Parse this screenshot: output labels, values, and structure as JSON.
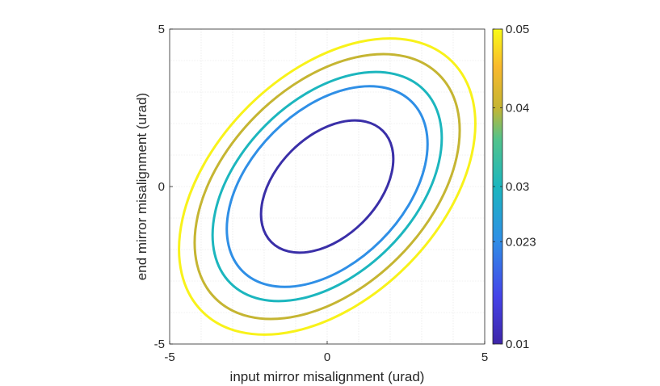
{
  "chart_data": {
    "type": "contour",
    "xlabel": "input mirror misalignment (urad)",
    "ylabel": "end mirror misalignment (urad)",
    "xlim": [
      -5,
      5
    ],
    "ylim": [
      -5,
      5
    ],
    "xticks": [
      "-5",
      "0",
      "5"
    ],
    "yticks": [
      "-5",
      "0",
      "5"
    ],
    "grid": true,
    "colorbar": {
      "range": [
        0.01,
        0.05
      ],
      "ticks": [
        {
          "value": 0.01,
          "label": "0.01"
        },
        {
          "value": 0.023,
          "label": "0.023"
        },
        {
          "value": 0.03,
          "label": "0.03"
        },
        {
          "value": 0.04,
          "label": "0.04"
        },
        {
          "value": 0.05,
          "label": "0.05"
        }
      ],
      "placement": "right"
    },
    "levels": [
      {
        "value": 0.01,
        "color": "#3a2fa8",
        "major": 2.5,
        "minor": 1.6
      },
      {
        "value": 0.023,
        "color": "#2f8fe6",
        "major": 3.8,
        "minor": 2.42
      },
      {
        "value": 0.03,
        "color": "#1cb6be",
        "major": 4.34,
        "minor": 2.76
      },
      {
        "value": 0.04,
        "color": "#c5b532",
        "major": 5.02,
        "minor": 3.19
      },
      {
        "value": 0.05,
        "color": "#f8f21a",
        "major": 5.61,
        "minor": 3.57
      }
    ],
    "tilt_deg": -45
  }
}
